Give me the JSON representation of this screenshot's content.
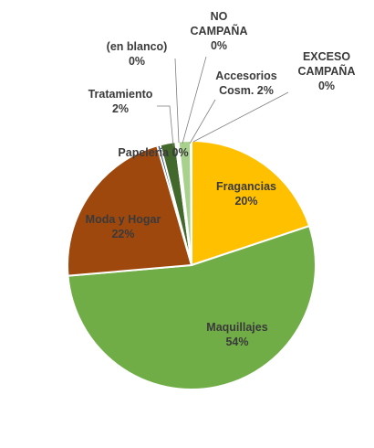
{
  "chart_data": {
    "type": "pie",
    "title": "",
    "slices": [
      {
        "name": "Fragancias",
        "percent_label": "20%",
        "value": 20,
        "color": "#FFC000"
      },
      {
        "name": "Maquillajes",
        "percent_label": "54%",
        "value": 54,
        "color": "#70AD47"
      },
      {
        "name": "Moda y Hogar",
        "percent_label": "22%",
        "value": 22,
        "color": "#9E480E"
      },
      {
        "name": "Papelería",
        "percent_label": "0%",
        "value": 0.4,
        "color": "#264478"
      },
      {
        "name": "Tratamiento",
        "percent_label": "2%",
        "value": 2,
        "color": "#43682B"
      },
      {
        "name": "(en blanco)",
        "percent_label": "0%",
        "value": 0.2,
        "color": "#7F7F7F"
      },
      {
        "name": "NO CAMPAÑA",
        "percent_label": "0%",
        "value": 0.2,
        "color": "#A5A5A5"
      },
      {
        "name": "Accesorios Cosm.",
        "percent_label": "2%",
        "value": 1.6,
        "color": "#A9D18E"
      },
      {
        "name": "EXCESO CAMPAÑA",
        "percent_label": "0%",
        "value": 0.1,
        "color": "#5B9BD5"
      }
    ],
    "labels": [
      {
        "slice": "Fragancias",
        "lines": [
          "Fragancias",
          "20%"
        ]
      },
      {
        "slice": "Maquillajes",
        "lines": [
          "Maquillajes",
          "54%"
        ]
      },
      {
        "slice": "Moda y Hogar",
        "lines": [
          "Moda y Hogar",
          "22%"
        ]
      },
      {
        "slice": "Papelería",
        "lines": [
          "Papelería 0%"
        ]
      },
      {
        "slice": "Tratamiento",
        "lines": [
          "Tratamiento",
          "2%"
        ]
      },
      {
        "slice": "(en blanco)",
        "lines": [
          "(en blanco)",
          "0%"
        ]
      },
      {
        "slice": "NO CAMPAÑA",
        "lines": [
          "NO",
          "CAMPAÑA",
          "0%"
        ]
      },
      {
        "slice": "Accesorios Cosm.",
        "lines": [
          "Accesorios",
          "Cosm. 2%"
        ]
      },
      {
        "slice": "EXCESO CAMPAÑA",
        "lines": [
          "EXCESO",
          "CAMPAÑA",
          "0%"
        ]
      }
    ],
    "legend": "none",
    "label_color": "#3a3a3a"
  }
}
